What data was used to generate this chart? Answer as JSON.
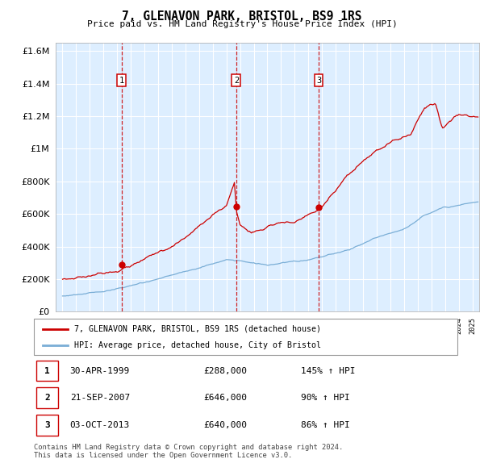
{
  "title": "7, GLENAVON PARK, BRISTOL, BS9 1RS",
  "subtitle": "Price paid vs. HM Land Registry's House Price Index (HPI)",
  "sale_dates": [
    "30-APR-1999",
    "21-SEP-2007",
    "03-OCT-2013"
  ],
  "sale_prices": [
    288000,
    646000,
    640000
  ],
  "sale_hpi_pct": [
    "145% ↑ HPI",
    "90% ↑ HPI",
    "86% ↑ HPI"
  ],
  "sale_years": [
    1999.33,
    2007.72,
    2013.75
  ],
  "red_line_color": "#cc0000",
  "blue_line_color": "#7aaed6",
  "background_color": "#ddeeff",
  "grid_color": "#ffffff",
  "dashed_line_color": "#cc0000",
  "legend_label_red": "7, GLENAVON PARK, BRISTOL, BS9 1RS (detached house)",
  "legend_label_blue": "HPI: Average price, detached house, City of Bristol",
  "footer": "Contains HM Land Registry data © Crown copyright and database right 2024.\nThis data is licensed under the Open Government Licence v3.0.",
  "ylim": [
    0,
    1650000
  ],
  "xlim": [
    1994.5,
    2025.5
  ],
  "yticks": [
    0,
    200000,
    400000,
    600000,
    800000,
    1000000,
    1200000,
    1400000,
    1600000
  ],
  "ytick_labels": [
    "£0",
    "£200K",
    "£400K",
    "£600K",
    "£800K",
    "£1M",
    "£1.2M",
    "£1.4M",
    "£1.6M"
  ]
}
